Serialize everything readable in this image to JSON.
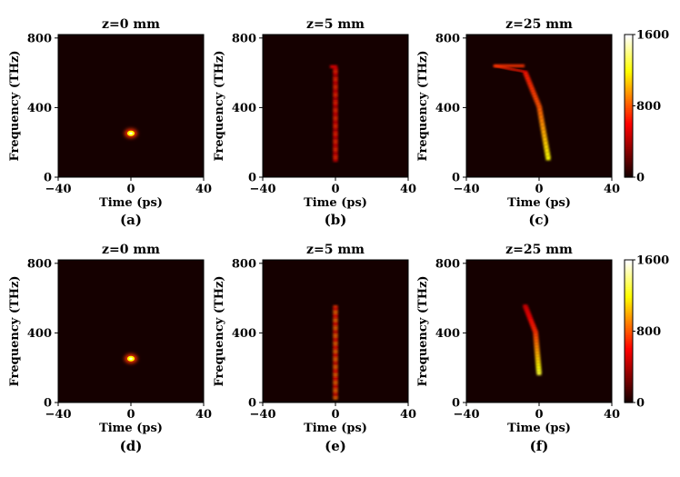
{
  "chart_data": {
    "type": "heatmap",
    "colormap": "hot",
    "colorbar": {
      "min": 0,
      "max": 1600,
      "ticks": [
        "0",
        "800",
        "1600"
      ]
    },
    "xlabel": "Time (ps)",
    "ylabel": "Frequency (THz)",
    "xlim": [
      -40,
      40
    ],
    "ylim": [
      0,
      820
    ],
    "xticks": [
      "-40",
      "0",
      "40"
    ],
    "yticks": [
      "0",
      "400",
      "800"
    ],
    "panels": [
      {
        "title": "z=0 mm",
        "caption": "(a)",
        "blobs": [
          {
            "t": 0,
            "f": 252,
            "intensity": 1.0
          }
        ]
      },
      {
        "title": "z=5 mm",
        "caption": "(b)",
        "trace": [
          {
            "t": 0,
            "f0": 90,
            "f1": 620,
            "intensity": 0.45
          },
          {
            "t": -1,
            "f": 635,
            "intensity": 0.35
          }
        ]
      },
      {
        "title": "z=25 mm",
        "caption": "(c)",
        "trace": [
          {
            "t": 5,
            "f": 100,
            "intensity": 0.75
          },
          {
            "t": 0,
            "f": 400,
            "intensity": 0.5
          },
          {
            "t": -8,
            "f": 605,
            "intensity": 0.4
          },
          {
            "t": -25,
            "f": 640,
            "intensity": 0.45
          }
        ]
      },
      {
        "title": "z=0 mm",
        "caption": "(d)",
        "blobs": [
          {
            "t": 0,
            "f": 252,
            "intensity": 1.0
          }
        ]
      },
      {
        "title": "z=5 mm",
        "caption": "(e)",
        "trace": [
          {
            "t": 0,
            "f0": 20,
            "f1": 560,
            "intensity": 0.55
          }
        ]
      },
      {
        "title": "z=25 mm",
        "caption": "(f)",
        "trace": [
          {
            "t": 0,
            "f": 160,
            "intensity": 0.8
          },
          {
            "t": -2,
            "f": 400,
            "intensity": 0.45
          },
          {
            "t": -8,
            "f": 560,
            "intensity": 0.3
          }
        ]
      }
    ]
  }
}
